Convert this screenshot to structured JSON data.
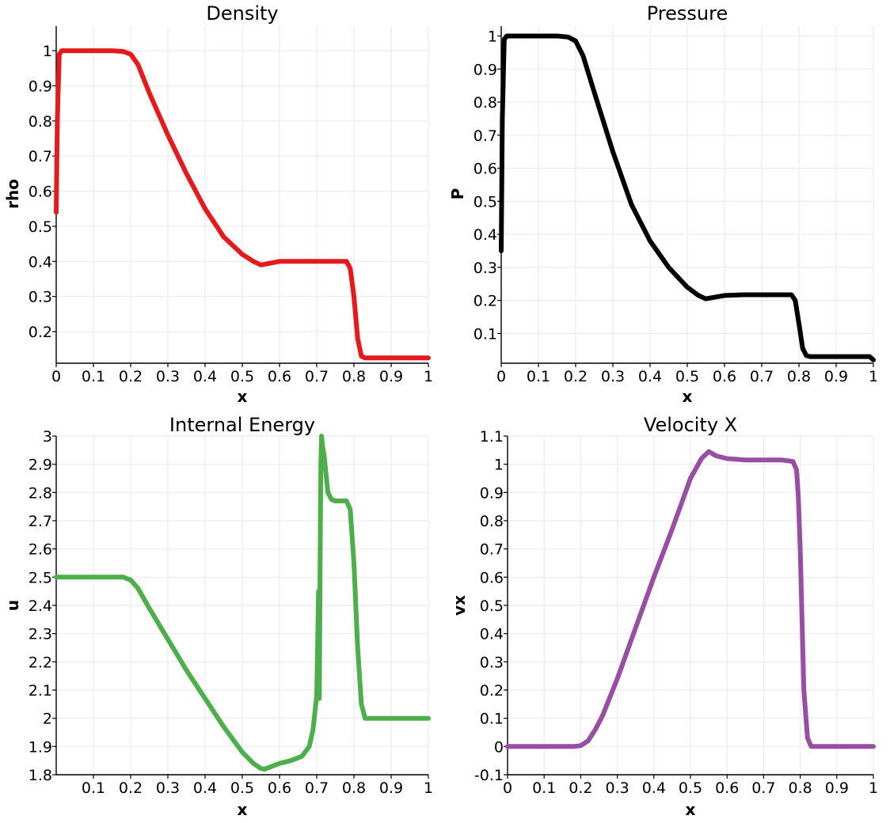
{
  "chart_data": [
    {
      "type": "line",
      "title": "Density",
      "xlabel": "x",
      "ylabel": "rho",
      "color": "#e41a1c",
      "xlim": [
        0,
        1
      ],
      "ylim": [
        0.11,
        1.07
      ],
      "xticks": [
        0,
        0.1,
        0.2,
        0.3,
        0.4,
        0.5,
        0.6,
        0.7,
        0.8,
        0.9,
        1
      ],
      "xtick_labels": [
        "0",
        "0.1",
        "0.2",
        "0.3",
        "0.4",
        "0.5",
        "0.6",
        "0.7",
        "0.8",
        "0.9",
        "1"
      ],
      "yticks": [
        0.2,
        0.3,
        0.4,
        0.5,
        0.6,
        0.7,
        0.8,
        0.9,
        1
      ],
      "ytick_labels": [
        "0.2",
        "0.3",
        "0.4",
        "0.5",
        "0.6",
        "0.7",
        "0.8",
        "0.9",
        "1"
      ],
      "grid": true,
      "series": [
        {
          "x": [
            0,
            0.003,
            0.008,
            0.015,
            0.05,
            0.1,
            0.15,
            0.18,
            0.2,
            0.22,
            0.25,
            0.3,
            0.35,
            0.4,
            0.45,
            0.5,
            0.53,
            0.55,
            0.56,
            0.6,
            0.65,
            0.7,
            0.75,
            0.78,
            0.79,
            0.8,
            0.81,
            0.82,
            0.83,
            0.85,
            0.9,
            0.95,
            1
          ],
          "y": [
            0.54,
            0.8,
            0.99,
            1.0,
            1.0,
            1.0,
            1.0,
            0.998,
            0.99,
            0.96,
            0.88,
            0.76,
            0.65,
            0.55,
            0.47,
            0.42,
            0.4,
            0.39,
            0.392,
            0.4,
            0.4,
            0.4,
            0.4,
            0.4,
            0.38,
            0.3,
            0.18,
            0.13,
            0.125,
            0.125,
            0.125,
            0.125,
            0.125
          ]
        }
      ]
    },
    {
      "type": "line",
      "title": "Pressure",
      "xlabel": "x",
      "ylabel": "P",
      "color": "#000000",
      "xlim": [
        0,
        1
      ],
      "ylim": [
        0.01,
        1.03
      ],
      "xticks": [
        0,
        0.1,
        0.2,
        0.3,
        0.4,
        0.5,
        0.6,
        0.7,
        0.8,
        0.9,
        1
      ],
      "xtick_labels": [
        "0",
        "0.1",
        "0.2",
        "0.3",
        "0.4",
        "0.5",
        "0.6",
        "0.7",
        "0.8",
        "0.9",
        "1"
      ],
      "yticks": [
        0.1,
        0.2,
        0.3,
        0.4,
        0.5,
        0.6,
        0.7,
        0.8,
        0.9,
        1
      ],
      "ytick_labels": [
        "0.1",
        "0.2",
        "0.3",
        "0.4",
        "0.5",
        "0.6",
        "0.7",
        "0.8",
        "0.9",
        "1"
      ],
      "grid": true,
      "series": [
        {
          "x": [
            0,
            0.003,
            0.008,
            0.015,
            0.05,
            0.1,
            0.15,
            0.18,
            0.2,
            0.22,
            0.25,
            0.3,
            0.35,
            0.4,
            0.45,
            0.5,
            0.53,
            0.55,
            0.56,
            0.6,
            0.65,
            0.7,
            0.75,
            0.78,
            0.79,
            0.8,
            0.81,
            0.82,
            0.83,
            0.85,
            0.9,
            0.95,
            0.99,
            1
          ],
          "y": [
            0.35,
            0.75,
            0.99,
            1.0,
            1.0,
            1.0,
            1.0,
            0.997,
            0.985,
            0.94,
            0.83,
            0.65,
            0.49,
            0.38,
            0.3,
            0.24,
            0.215,
            0.205,
            0.207,
            0.215,
            0.217,
            0.217,
            0.217,
            0.217,
            0.2,
            0.13,
            0.055,
            0.033,
            0.03,
            0.03,
            0.03,
            0.03,
            0.03,
            0.02
          ]
        }
      ]
    },
    {
      "type": "line",
      "title": "Internal Energy",
      "xlabel": "x",
      "ylabel": "u",
      "color": "#4daf4a",
      "xlim": [
        0,
        1
      ],
      "ylim": [
        1.8,
        3
      ],
      "xticks": [
        0.1,
        0.2,
        0.3,
        0.4,
        0.5,
        0.6,
        0.7,
        0.8,
        0.9,
        1
      ],
      "xtick_labels": [
        "0.1",
        "0.2",
        "0.3",
        "0.4",
        "0.5",
        "0.6",
        "0.7",
        "0.8",
        "0.9",
        "1"
      ],
      "yticks": [
        1.8,
        1.9,
        2,
        2.1,
        2.2,
        2.3,
        2.4,
        2.5,
        2.6,
        2.7,
        2.8,
        2.9,
        3
      ],
      "ytick_labels": [
        "1.8",
        "1.9",
        "2",
        "2.1",
        "2.2",
        "2.3",
        "2.4",
        "2.5",
        "2.6",
        "2.7",
        "2.8",
        "2.9",
        "3"
      ],
      "grid": true,
      "series": [
        {
          "x": [
            0,
            0.05,
            0.1,
            0.15,
            0.18,
            0.2,
            0.22,
            0.25,
            0.3,
            0.35,
            0.4,
            0.45,
            0.5,
            0.53,
            0.55,
            0.56,
            0.58,
            0.6,
            0.63,
            0.66,
            0.68,
            0.69,
            0.7,
            0.705,
            0.707,
            0.709,
            0.711,
            0.713,
            0.715,
            0.72,
            0.73,
            0.74,
            0.75,
            0.78,
            0.79,
            0.8,
            0.81,
            0.82,
            0.83,
            0.85,
            0.9,
            0.95,
            1
          ],
          "y": [
            2.5,
            2.5,
            2.5,
            2.5,
            2.5,
            2.49,
            2.46,
            2.39,
            2.28,
            2.17,
            2.07,
            1.97,
            1.88,
            1.84,
            1.822,
            1.82,
            1.83,
            1.84,
            1.85,
            1.865,
            1.9,
            1.96,
            2.08,
            2.45,
            2.07,
            2.5,
            2.9,
            3.0,
            2.97,
            2.93,
            2.8,
            2.775,
            2.77,
            2.77,
            2.74,
            2.55,
            2.25,
            2.05,
            2.0,
            2.0,
            2.0,
            2.0,
            2.0
          ]
        }
      ]
    },
    {
      "type": "line",
      "title": "Velocity X",
      "xlabel": "x",
      "ylabel": "vx",
      "color": "#984ea3",
      "xlim": [
        0,
        1
      ],
      "ylim": [
        -0.1,
        1.1
      ],
      "xticks": [
        0,
        0.1,
        0.2,
        0.3,
        0.4,
        0.5,
        0.6,
        0.7,
        0.8,
        0.9,
        1
      ],
      "xtick_labels": [
        "0",
        "0.1",
        "0.2",
        "0.3",
        "0.4",
        "0.5",
        "0.6",
        "0.7",
        "0.8",
        "0.9",
        "1"
      ],
      "yticks": [
        -0.1,
        0,
        0.1,
        0.2,
        0.3,
        0.4,
        0.5,
        0.6,
        0.7,
        0.8,
        0.9,
        1,
        1.1
      ],
      "ytick_labels": [
        "-0.1",
        "0",
        "0.1",
        "0.2",
        "0.3",
        "0.4",
        "0.5",
        "0.6",
        "0.7",
        "0.8",
        "0.9",
        "1",
        "1.1"
      ],
      "grid": true,
      "series": [
        {
          "x": [
            0,
            0.05,
            0.1,
            0.15,
            0.18,
            0.2,
            0.22,
            0.24,
            0.26,
            0.3,
            0.35,
            0.4,
            0.45,
            0.5,
            0.53,
            0.55,
            0.57,
            0.6,
            0.65,
            0.7,
            0.75,
            0.78,
            0.79,
            0.795,
            0.8,
            0.805,
            0.81,
            0.82,
            0.83,
            0.85,
            0.9,
            0.95,
            1
          ],
          "y": [
            0,
            0,
            0,
            0,
            0,
            0.003,
            0.02,
            0.06,
            0.11,
            0.24,
            0.42,
            0.6,
            0.77,
            0.95,
            1.02,
            1.045,
            1.03,
            1.02,
            1.015,
            1.015,
            1.015,
            1.01,
            0.98,
            0.88,
            0.7,
            0.45,
            0.2,
            0.03,
            0,
            0,
            0,
            0,
            0
          ]
        }
      ]
    }
  ]
}
